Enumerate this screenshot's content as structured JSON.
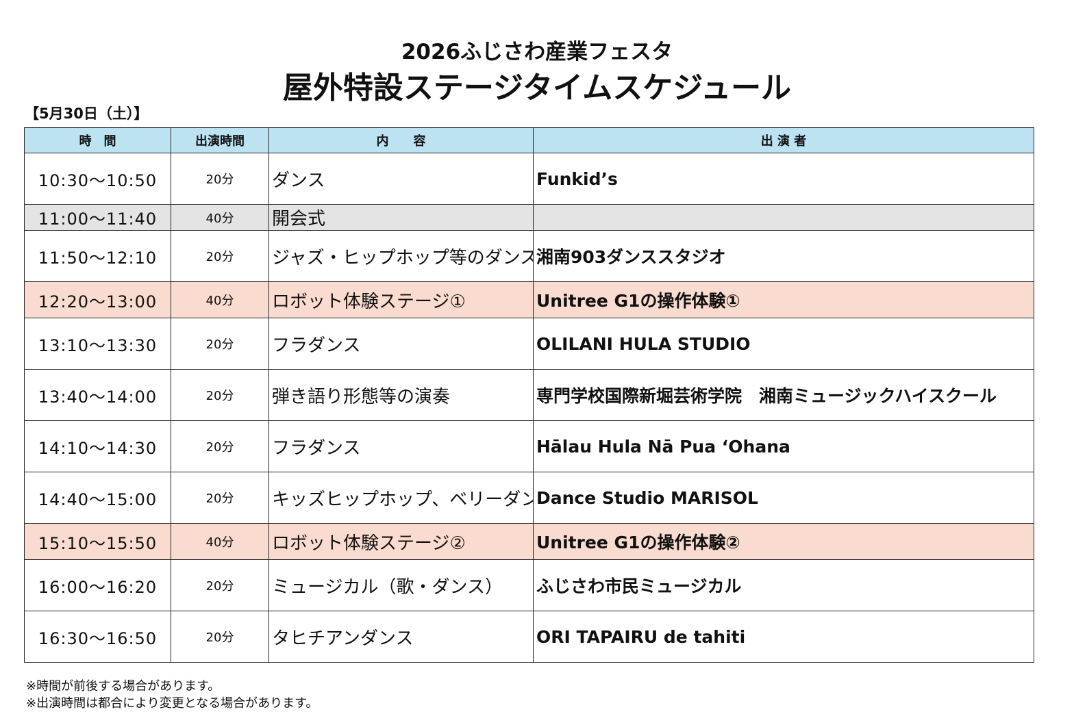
{
  "header": {
    "subtitle": "2026ふじさわ産業フェスタ",
    "title": "屋外特設ステージタイムスケジュール",
    "date": "【5月30日（土）】"
  },
  "table": {
    "columns": [
      "時　間",
      "出演時間",
      "内　　容",
      "出 演 者"
    ],
    "rows": [
      [
        "10:30～10:50",
        "20分",
        "ダンス",
        "Funkid’s"
      ],
      [
        "11:00～11:40",
        "40分",
        "開会式",
        null
      ],
      [
        "11:50～12:10",
        "20分",
        "ジャズ・ヒップホップ等のダンス",
        "湘南903ダンススタジオ"
      ],
      [
        "12:20～13:00",
        "40分",
        "ロボット体験ステージ①",
        "Unitree G1の操作体験①"
      ],
      [
        "13:10～13:30",
        "20分",
        "フラダンス",
        "OLILANI HULA STUDIO"
      ],
      [
        "13:40～14:00",
        "20分",
        "弾き語り形態等の演奏",
        "専門学校国際新堀芸術学院　湘南ミュージックハイスクール"
      ],
      [
        "14:10～14:30",
        "20分",
        "フラダンス",
        "Hālau Hula Nā Pua ʻOhana"
      ],
      [
        "14:40～15:00",
        "20分",
        "キッズヒップホップ、ベリーダンス",
        "Dance Studio MARISOL"
      ],
      [
        "15:10～15:50",
        "40分",
        "ロボット体験ステージ②",
        "Unitree G1の操作体験②"
      ],
      [
        "16:00～16:20",
        "20分",
        "ミュージカル（歌・ダンス）",
        "ふじさわ市民ミュージカル"
      ],
      [
        "16:30～16:50",
        "20分",
        "タヒチアンダンス",
        "ORI TAPAIRU de tahiti"
      ]
    ]
  },
  "notes": [
    "※時間が前後する場合があります。",
    "※出演時間は都合により変更となる場合があります。"
  ]
}
